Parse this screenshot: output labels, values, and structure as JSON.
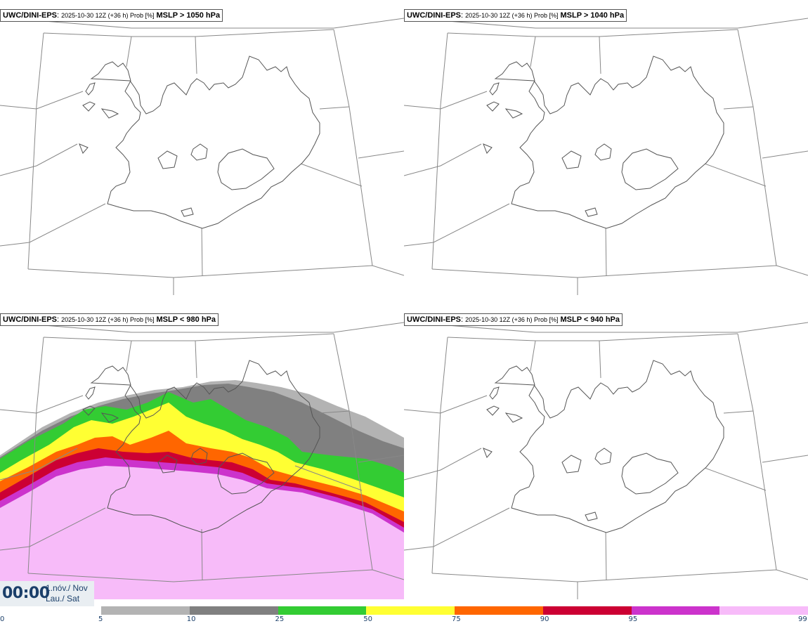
{
  "panels": [
    {
      "model": "UWC/DINI-EPS",
      "meta": "2025-10-30 12Z (+36 h) Prob [%]",
      "threshold": "MSLP > 1050 hPa"
    },
    {
      "model": "UWC/DINI-EPS",
      "meta": "2025-10-30 12Z (+36 h) Prob [%]",
      "threshold": "MSLP > 1040 hPa"
    },
    {
      "model": "UWC/DINI-EPS",
      "meta": "2025-10-30 12Z (+36 h) Prob [%]",
      "threshold": "MSLP < 980 hPa"
    },
    {
      "model": "UWC/DINI-EPS",
      "meta": "2025-10-30 12Z (+36 h) Prob [%]",
      "threshold": "MSLP < 940 hPa"
    }
  ],
  "time": {
    "clock": "00:00",
    "date_line1": "1.nóv./ Nov",
    "date_line2": "Lau./ Sat"
  },
  "legend": {
    "ticks": [
      "0",
      "5",
      "10",
      "25",
      "50",
      "75",
      "90",
      "95",
      "99"
    ],
    "colors": [
      "#b3b3b3",
      "#808080",
      "#33cc33",
      "#ffff33",
      "#ff6600",
      "#cc0033",
      "#cc33cc",
      "#f7bbf9"
    ]
  }
}
